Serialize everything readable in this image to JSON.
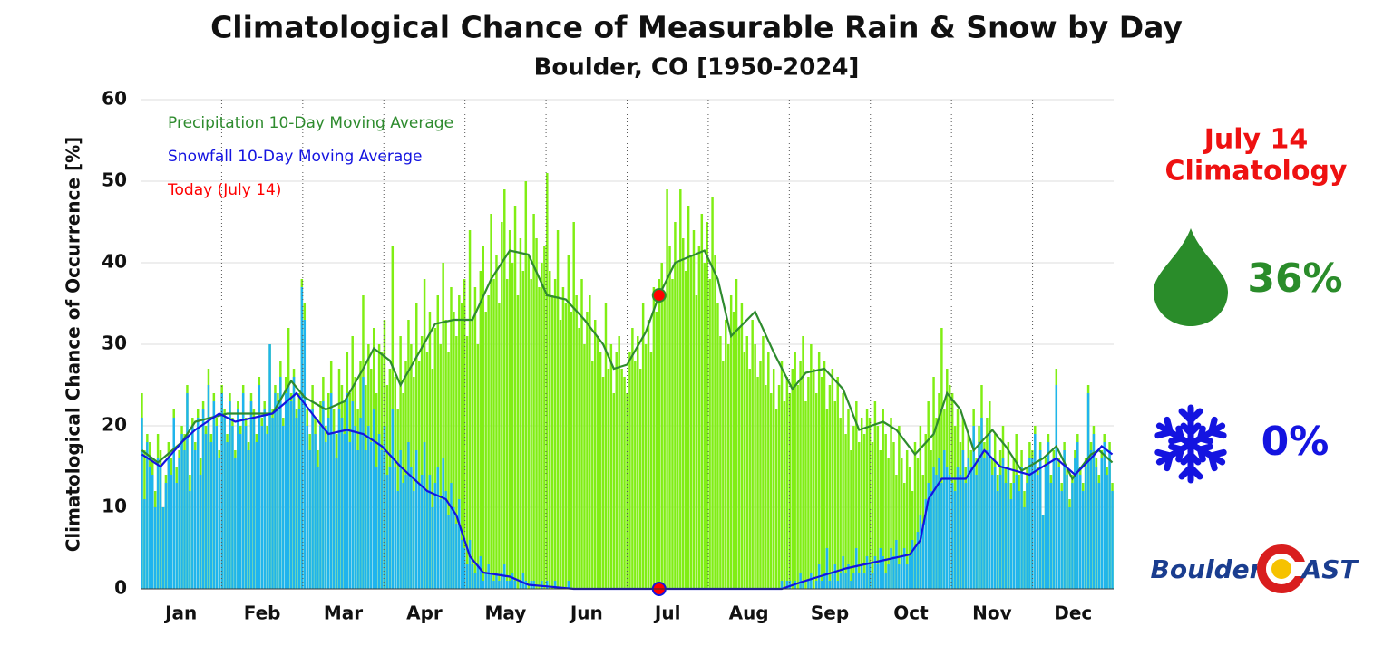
{
  "chart_data": {
    "type": "bar",
    "title": "Climatological Chance of Measurable Rain & Snow by Day",
    "subtitle": "Boulder, CO [1950-2024]",
    "y_label": "Climatological Chance of Occurrence [%]",
    "categories": [
      "Jan",
      "Feb",
      "Mar",
      "Apr",
      "May",
      "Jun",
      "Jul",
      "Aug",
      "Sep",
      "Oct",
      "Nov",
      "Dec"
    ],
    "xlim": [
      0.5,
      365.5
    ],
    "ylim": [
      0,
      60
    ],
    "yticks": [
      0,
      10,
      20,
      30,
      40,
      50,
      60
    ],
    "grid": true,
    "bar_series": [
      {
        "color": "#80ee14",
        "values": [
          24,
          17,
          19,
          18,
          16,
          12,
          19,
          17,
          10,
          14,
          18,
          16,
          22,
          15,
          17,
          20,
          19,
          25,
          14,
          21,
          18,
          22,
          16,
          23,
          20,
          27,
          19,
          24,
          21,
          17,
          25,
          22,
          19,
          24,
          21,
          17,
          23,
          20,
          25,
          21,
          18,
          24,
          22,
          19,
          26,
          21,
          23,
          20,
          30,
          22,
          25,
          24,
          28,
          21,
          26,
          32,
          24,
          27,
          22,
          24,
          38,
          35,
          22,
          19,
          25,
          21,
          17,
          23,
          26,
          20,
          24,
          28,
          22,
          19,
          27,
          25,
          23,
          29,
          24,
          31,
          26,
          22,
          28,
          36,
          25,
          30,
          27,
          32,
          24,
          30,
          29,
          33,
          25,
          27,
          42,
          26,
          22,
          31,
          24,
          28,
          33,
          30,
          26,
          35,
          28,
          31,
          38,
          29,
          34,
          27,
          32,
          36,
          30,
          40,
          33,
          29,
          37,
          34,
          31,
          36,
          35,
          38,
          31,
          44,
          33,
          37,
          30,
          39,
          42,
          34,
          36,
          46,
          38,
          41,
          35,
          45,
          49,
          38,
          44,
          40,
          47,
          36,
          43,
          39,
          50,
          41,
          38,
          46,
          43,
          37,
          40,
          42,
          51,
          39,
          36,
          38,
          44,
          33,
          37,
          35,
          41,
          34,
          45,
          36,
          32,
          38,
          30,
          34,
          36,
          28,
          33,
          31,
          29,
          26,
          35,
          27,
          30,
          24,
          29,
          31,
          27,
          26,
          24,
          29,
          32,
          28,
          31,
          27,
          35,
          30,
          33,
          29,
          37,
          34,
          38,
          40,
          36,
          49,
          42,
          38,
          45,
          40,
          49,
          43,
          39,
          47,
          41,
          44,
          36,
          42,
          46,
          40,
          45,
          38,
          48,
          41,
          35,
          31,
          28,
          33,
          30,
          36,
          34,
          38,
          32,
          35,
          29,
          31,
          27,
          33,
          30,
          26,
          28,
          31,
          25,
          29,
          24,
          27,
          22,
          25,
          28,
          23,
          26,
          24,
          27,
          29,
          25,
          28,
          31,
          23,
          26,
          30,
          27,
          24,
          29,
          26,
          28,
          22,
          25,
          27,
          23,
          26,
          21,
          24,
          19,
          22,
          17,
          20,
          23,
          18,
          21,
          19,
          22,
          21,
          18,
          23,
          20,
          17,
          22,
          19,
          16,
          21,
          18,
          14,
          20,
          16,
          13,
          17,
          15,
          12,
          18,
          16,
          20,
          14,
          19,
          23,
          17,
          26,
          21,
          24,
          32,
          22,
          27,
          25,
          24,
          20,
          22,
          18,
          21,
          15,
          19,
          17,
          22,
          16,
          20,
          25,
          18,
          21,
          23,
          16,
          19,
          14,
          17,
          20,
          15,
          18,
          13,
          16,
          19,
          14,
          17,
          12,
          15,
          18,
          17,
          20,
          15,
          18,
          9,
          16,
          19,
          14,
          17,
          27,
          16,
          13,
          18,
          15,
          11,
          14,
          17,
          19,
          15,
          13,
          16,
          25,
          18,
          20,
          16,
          14,
          17,
          19,
          15,
          18,
          13
        ]
      },
      {
        "color": "#1fb4ee",
        "values": [
          21,
          11,
          18,
          15,
          14,
          10,
          16,
          15,
          10,
          13,
          16,
          14,
          21,
          13,
          16,
          19,
          17,
          24,
          12,
          20,
          17,
          21,
          14,
          22,
          19,
          25,
          18,
          23,
          20,
          16,
          24,
          21,
          18,
          23,
          20,
          16,
          22,
          19,
          24,
          20,
          17,
          23,
          21,
          18,
          25,
          20,
          22,
          19,
          30,
          21,
          24,
          23,
          26,
          20,
          24,
          25,
          23,
          26,
          21,
          22,
          37,
          33,
          20,
          17,
          22,
          19,
          15,
          20,
          23,
          18,
          21,
          24,
          19,
          16,
          22,
          21,
          19,
          24,
          18,
          23,
          20,
          17,
          21,
          26,
          17,
          20,
          18,
          22,
          15,
          19,
          17,
          20,
          14,
          15,
          22,
          15,
          12,
          17,
          13,
          14,
          18,
          15,
          12,
          17,
          13,
          14,
          18,
          12,
          14,
          10,
          13,
          15,
          11,
          16,
          12,
          9,
          13,
          10,
          8,
          11,
          6,
          5,
          3,
          6,
          3,
          2,
          3,
          4,
          1,
          2,
          3,
          2,
          1,
          2,
          1,
          2,
          3,
          1,
          1,
          2,
          1,
          0,
          1,
          2,
          1,
          0,
          1,
          1,
          0,
          0,
          1,
          0,
          1,
          0,
          0,
          1,
          0,
          0,
          0,
          0,
          1,
          0,
          0,
          0,
          0,
          0,
          0,
          0,
          0,
          0,
          0,
          0,
          0,
          0,
          0,
          0,
          0,
          0,
          0,
          0,
          0,
          0,
          0,
          0,
          0,
          0,
          0,
          0,
          0,
          0,
          0,
          0,
          0,
          0,
          0,
          0,
          0,
          0,
          0,
          0,
          0,
          0,
          0,
          0,
          0,
          0,
          0,
          0,
          0,
          0,
          0,
          0,
          0,
          0,
          0,
          0,
          0,
          0,
          0,
          0,
          0,
          0,
          0,
          0,
          0,
          0,
          0,
          0,
          0,
          0,
          0,
          0,
          0,
          0,
          0,
          0,
          0,
          0,
          0,
          0,
          1,
          0,
          1,
          1,
          0,
          1,
          0,
          2,
          1,
          0,
          1,
          2,
          0,
          1,
          3,
          1,
          2,
          5,
          1,
          2,
          3,
          1,
          2,
          4,
          2,
          3,
          1,
          2,
          5,
          2,
          3,
          2,
          4,
          3,
          2,
          4,
          3,
          5,
          4,
          2,
          3,
          5,
          4,
          6,
          3,
          4,
          5,
          3,
          4,
          6,
          5,
          7,
          9,
          8,
          11,
          13,
          12,
          15,
          14,
          16,
          13,
          17,
          15,
          14,
          13,
          12,
          15,
          14,
          17,
          13,
          16,
          15,
          20,
          14,
          18,
          21,
          16,
          17,
          19,
          14,
          15,
          12,
          14,
          16,
          13,
          15,
          11,
          13,
          14,
          12,
          15,
          10,
          13,
          16,
          16,
          19,
          14,
          17,
          9,
          15,
          18,
          13,
          16,
          25,
          15,
          12,
          17,
          14,
          10,
          13,
          16,
          18,
          14,
          12,
          15,
          24,
          17,
          19,
          15,
          13,
          16,
          18,
          14,
          17,
          12
        ]
      }
    ],
    "series": [
      {
        "name": "Precipitation 10-Day Moving Average",
        "color": "#2e8b2e",
        "x": [
          1,
          7,
          16,
          21,
          33,
          50,
          57,
          62,
          70,
          77,
          84,
          88,
          94,
          98,
          105,
          111,
          118,
          125,
          132,
          139,
          146,
          153,
          160,
          167,
          174,
          178,
          183,
          190,
          195,
          201,
          212,
          217,
          222,
          231,
          238,
          245,
          250,
          257,
          264,
          270,
          279,
          284,
          291,
          298,
          303,
          308,
          313,
          320,
          325,
          331,
          339,
          344,
          350,
          357,
          360,
          365
        ],
        "values": [
          17,
          15.5,
          18,
          20.5,
          21.5,
          21.5,
          25.5,
          23.5,
          22,
          23,
          27,
          29.5,
          28,
          25,
          29,
          32.5,
          33,
          33,
          38,
          41.5,
          41,
          36,
          35.5,
          33,
          30,
          27,
          27.5,
          31.5,
          36,
          40,
          41.5,
          38,
          31,
          34,
          29,
          24.5,
          26.5,
          27,
          24.5,
          19.5,
          20.5,
          19.5,
          16.5,
          19,
          24,
          22,
          17,
          19.5,
          17.5,
          14.5,
          16,
          17.5,
          13.5,
          16.5,
          17,
          15.5
        ]
      },
      {
        "name": "Snowfall 10-Day Moving Average",
        "color": "#1414e0",
        "x": [
          1,
          8,
          16,
          21,
          30,
          36,
          50,
          59,
          66,
          71,
          78,
          84,
          91,
          98,
          103,
          108,
          115,
          119,
          124,
          129,
          139,
          146,
          153,
          163,
          241,
          248,
          255,
          265,
          279,
          289,
          293,
          296,
          301,
          310,
          317,
          323,
          334,
          344,
          351,
          357,
          361,
          365
        ],
        "values": [
          16.5,
          15,
          18,
          19.5,
          21.5,
          20.5,
          21.5,
          24,
          21,
          19,
          19.5,
          19,
          17.5,
          15,
          13.5,
          12,
          11,
          9,
          4,
          2,
          1.5,
          0.5,
          0.3,
          0,
          0,
          0.8,
          1.5,
          2.5,
          3.5,
          4.2,
          6,
          11,
          13.5,
          13.5,
          17,
          15,
          14,
          16,
          14,
          16,
          17.5,
          16.5
        ]
      }
    ],
    "marker": {
      "label": "Today (July 14)",
      "color": "#ff0000",
      "x": 195,
      "values": [
        36,
        0
      ]
    }
  },
  "panel": {
    "title": [
      "July 14",
      "Climatology"
    ],
    "rain": {
      "value": 36,
      "label": "36%"
    },
    "snow": {
      "value": 0,
      "label": "0%"
    },
    "brand": [
      "Boulder",
      "AST"
    ]
  }
}
